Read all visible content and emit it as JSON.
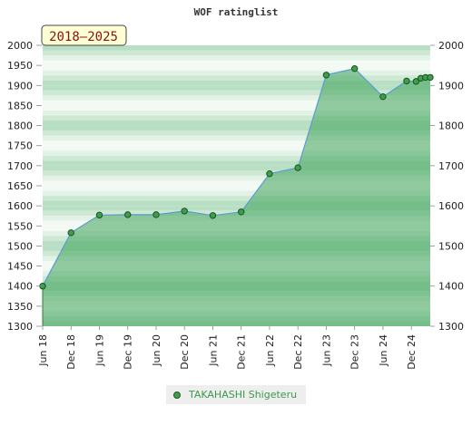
{
  "chart_data": {
    "type": "line",
    "title": "WOF ratinglist",
    "badge": "2018–2025",
    "ylim": [
      1300,
      2000
    ],
    "y_ticks": [
      1300,
      1350,
      1400,
      1450,
      1500,
      1550,
      1600,
      1650,
      1700,
      1750,
      1800,
      1850,
      1900,
      1950,
      2000
    ],
    "y_ticks_right": [
      1300,
      1400,
      1500,
      1600,
      1700,
      1800,
      1900,
      2000
    ],
    "x_ticks": [
      "Jun 18",
      "Dec 18",
      "Jun 19",
      "Dec 19",
      "Jun 20",
      "Dec 20",
      "Jun 21",
      "Dec 21",
      "Jun 22",
      "Dec 22",
      "Jun 23",
      "Dec 23",
      "Jun 24",
      "Dec 24"
    ],
    "x_range": [
      "Jun 18",
      "Apr 25"
    ],
    "series": [
      {
        "name": "TAKAHASHI Shigeteru",
        "color": "#3ca04a",
        "line_color": "#5b9bd5",
        "area": true,
        "points": [
          {
            "x": "Jun 18",
            "y": 1400
          },
          {
            "x": "Dec 18",
            "y": 1533
          },
          {
            "x": "Jun 19",
            "y": 1577
          },
          {
            "x": "Dec 19",
            "y": 1578
          },
          {
            "x": "Jun 20",
            "y": 1578
          },
          {
            "x": "Dec 20",
            "y": 1587
          },
          {
            "x": "Jun 21",
            "y": 1576
          },
          {
            "x": "Dec 21",
            "y": 1585
          },
          {
            "x": "Jun 22",
            "y": 1680
          },
          {
            "x": "Dec 22",
            "y": 1695
          },
          {
            "x": "Jun 23",
            "y": 1926
          },
          {
            "x": "Dec 23",
            "y": 1942
          },
          {
            "x": "Jun 24",
            "y": 1872
          },
          {
            "x": "Nov 24",
            "y": 1911
          },
          {
            "x": "Jan 25",
            "y": 1910
          },
          {
            "x": "Feb 25",
            "y": 1918
          },
          {
            "x": "Mar 25",
            "y": 1920
          },
          {
            "x": "Apr 25",
            "y": 1920
          }
        ]
      }
    ],
    "legend": [
      "TAKAHASHI Shigeteru"
    ],
    "legend_position": "bottom-center"
  }
}
